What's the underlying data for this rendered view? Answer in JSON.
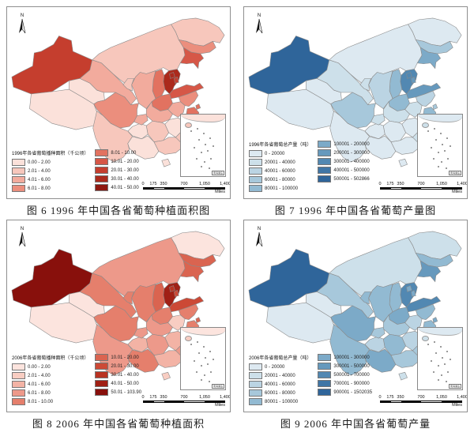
{
  "page": {
    "background": "#ffffff",
    "panel_border_color": "#8f8f8f"
  },
  "shared": {
    "north_label": "N",
    "scalebar_ticks": [
      "0",
      "175",
      "350",
      "700",
      "1,050",
      "1,400"
    ],
    "scalebar_unit": "Miles",
    "inset_label": "南海诸岛",
    "ramps": {
      "reds9": [
        "#fbe1da",
        "#f7c7bc",
        "#f2ab9d",
        "#eb8e7d",
        "#e27260",
        "#d65747",
        "#c53e2e",
        "#ab2a1c",
        "#8f1810"
      ],
      "reds10": [
        "#fce4de",
        "#f8cdc2",
        "#f3b3a5",
        "#ed998a",
        "#e57f6c",
        "#da6450",
        "#cc4936",
        "#b93322",
        "#a02015",
        "#88100c"
      ],
      "blues10": [
        "#dde9f1",
        "#cde0ea",
        "#bbd4e3",
        "#a7c8db",
        "#92bad2",
        "#7caac8",
        "#6699bd",
        "#5288b2",
        "#4076a6",
        "#2f659a"
      ]
    }
  },
  "maps": [
    {
      "id": "fig6",
      "caption": "图 6 1996 年中国各省葡萄种植面积图",
      "legend_title": "1996年各省葡萄播种面积（千公顷）",
      "ramp": "reds9",
      "split": 4,
      "classes": [
        "0.00 - 2.00",
        "2.01 - 4.00",
        "4.01 - 6.00",
        "6.01 - 8.00",
        "8.01 - 10.00",
        "10.01 - 20.00",
        "20.01 - 30.00",
        "30.01 - 40.00",
        "40.01 - 50.00"
      ],
      "province_class": {
        "xinjiang": 7,
        "xizang": 1,
        "qinghai": 1,
        "gansu": 3,
        "neimenggu": 2,
        "heilongjiang": 2,
        "jilin": 4,
        "liaoning": 6,
        "beijing": 8,
        "tianjin": 7,
        "hebei": 8,
        "shanxi": 5,
        "shandong": 6,
        "henan": 5,
        "shaanxi": 3,
        "ningxia": 2,
        "jiangsu": 4,
        "anhui": 3,
        "shanghai": 5,
        "hubei": 3,
        "zhejiang": 5,
        "jiangxi": 1,
        "hunan": 2,
        "guizhou": 1,
        "sichuan": 4,
        "chongqing": 3,
        "yunnan": 2,
        "guangxi": 1,
        "guangdong": 2,
        "fujian": 2,
        "hainan": 1,
        "taiwan": 1
      }
    },
    {
      "id": "fig7",
      "caption": "图 7 1996 年中国各省葡萄产量图",
      "legend_title": "1996年各省葡萄总产量（吨）",
      "ramp": "blues10",
      "split": 5,
      "classes": [
        "0 - 20000",
        "20001 - 40000",
        "40001 - 60000",
        "60001 - 80000",
        "80001 - 100000",
        "100001 - 200000",
        "200001 - 300000",
        "300001 - 400000",
        "400001 - 500000",
        "500001 - 502866"
      ],
      "province_class": {
        "xinjiang": 10,
        "xizang": 1,
        "qinghai": 1,
        "gansu": 2,
        "neimenggu": 1,
        "heilongjiang": 1,
        "jilin": 4,
        "liaoning": 6,
        "beijing": 8,
        "tianjin": 7,
        "hebei": 8,
        "shanxi": 5,
        "shandong": 7,
        "henan": 5,
        "shaanxi": 3,
        "ningxia": 2,
        "jiangsu": 3,
        "anhui": 2,
        "shanghai": 4,
        "hubei": 2,
        "zhejiang": 5,
        "jiangxi": 1,
        "hunan": 1,
        "guizhou": 1,
        "sichuan": 4,
        "chongqing": 2,
        "yunnan": 1,
        "guangxi": 1,
        "guangdong": 1,
        "fujian": 2,
        "hainan": 1,
        "taiwan": 1
      }
    },
    {
      "id": "fig8",
      "caption": "图 8 2006 年中国各省葡萄种植面积",
      "legend_title": "2006年各省葡萄播种面积（千公顷）",
      "ramp": "reds10",
      "split": 5,
      "classes": [
        "0.00 - 2.00",
        "2.01 - 4.00",
        "4.01 - 6.00",
        "6.01 - 8.00",
        "8.01 - 10.00",
        "10.01 - 20.00",
        "20.01 - 30.00",
        "30.01 - 40.00",
        "40.01 - 50.00",
        "50.01 - 103.90"
      ],
      "province_class": {
        "xinjiang": 10,
        "xizang": 1,
        "qinghai": 1,
        "gansu": 5,
        "neimenggu": 4,
        "heilongjiang": 1,
        "jilin": 6,
        "liaoning": 6,
        "beijing": 8,
        "tianjin": 7,
        "hebei": 9,
        "shanxi": 6,
        "shandong": 7,
        "henan": 5,
        "shaanxi": 5,
        "ningxia": 5,
        "jiangsu": 5,
        "anhui": 2,
        "shanghai": 6,
        "hubei": 4,
        "zhejiang": 5,
        "jiangxi": 3,
        "hunan": 4,
        "guizhou": 3,
        "sichuan": 5,
        "chongqing": 4,
        "yunnan": 4,
        "guangxi": 5,
        "guangdong": 3,
        "fujian": 4,
        "hainan": 2,
        "taiwan": 2
      }
    },
    {
      "id": "fig9",
      "caption": "图 9 2006 年中国各省葡萄产量",
      "legend_title": "2006年各省葡萄总产量（吨）",
      "ramp": "blues10",
      "split": 5,
      "classes": [
        "0 - 20000",
        "20001 - 40000",
        "40001 - 60000",
        "60001 - 80000",
        "80001 - 100000",
        "100001 - 300000",
        "300001 - 500000",
        "500001 - 700000",
        "700001 - 900000",
        "900001 - 1502035"
      ],
      "province_class": {
        "xinjiang": 10,
        "xizang": 1,
        "qinghai": 1,
        "gansu": 4,
        "neimenggu": 2,
        "heilongjiang": 2,
        "jilin": 5,
        "liaoning": 7,
        "beijing": 6,
        "tianjin": 6,
        "hebei": 8,
        "shanxi": 5,
        "shandong": 8,
        "henan": 6,
        "shaanxi": 5,
        "ningxia": 5,
        "jiangsu": 5,
        "anhui": 3,
        "shanghai": 6,
        "hubei": 4,
        "zhejiang": 5,
        "jiangxi": 3,
        "hunan": 5,
        "guizhou": 3,
        "sichuan": 6,
        "chongqing": 4,
        "yunnan": 5,
        "guangxi": 6,
        "guangdong": 4,
        "fujian": 4,
        "hainan": 2,
        "taiwan": 1
      }
    }
  ]
}
